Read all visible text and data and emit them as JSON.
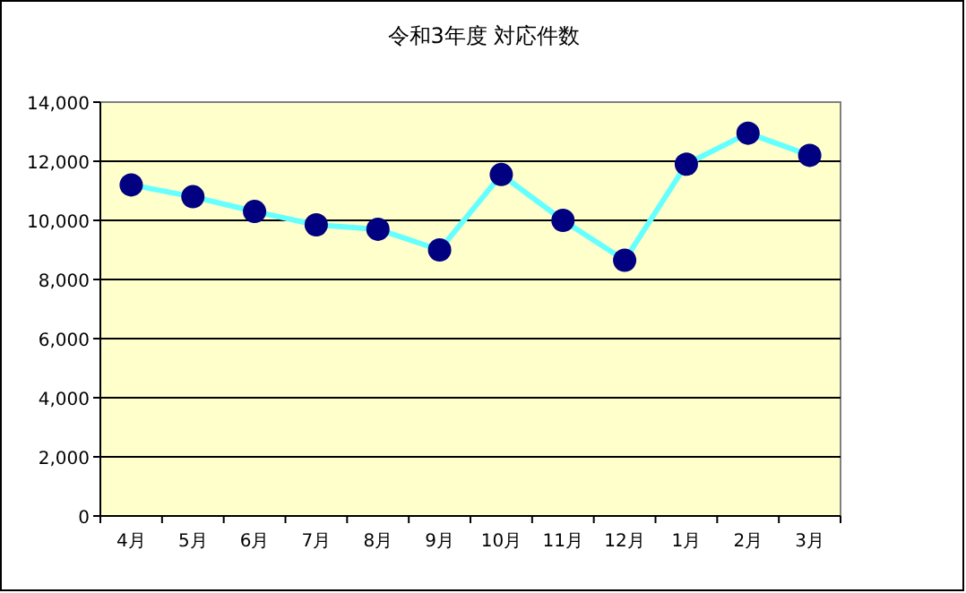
{
  "chart_data": {
    "type": "line",
    "title": "令和3年度 対応件数",
    "categories": [
      "4月",
      "5月",
      "6月",
      "7月",
      "8月",
      "9月",
      "10月",
      "11月",
      "12月",
      "1月",
      "2月",
      "3月"
    ],
    "series": [
      {
        "color": "#66ffff",
        "values": [
          11200,
          10800,
          10300,
          9850,
          9700,
          9000,
          11550,
          10000,
          8650,
          11900,
          12950,
          12200
        ]
      }
    ],
    "ylim": [
      0,
      14000
    ],
    "yticks": [
      {
        "value": 0,
        "label": "0"
      },
      {
        "value": 2000,
        "label": "2,000"
      },
      {
        "value": 4000,
        "label": "4,000"
      },
      {
        "value": 6000,
        "label": "6,000"
      },
      {
        "value": 8000,
        "label": "8,000"
      },
      {
        "value": 10000,
        "label": "10,000"
      },
      {
        "value": 12000,
        "label": "12,000"
      },
      {
        "value": 14000,
        "label": "14,000"
      }
    ],
    "grid": "y",
    "marker": "circle"
  }
}
